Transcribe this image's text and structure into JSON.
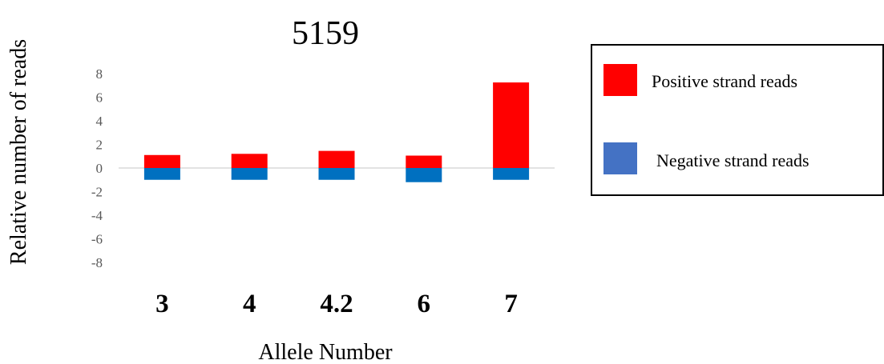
{
  "chart_data": {
    "type": "bar",
    "title": "5159",
    "xlabel": "Allele Number",
    "ylabel": "Relative number of reads",
    "categories": [
      "3",
      "4",
      "4.2",
      "6",
      "7"
    ],
    "yticks": [
      "8",
      "6",
      "4",
      "2",
      "0",
      "-2",
      "-4",
      "-6",
      "-8"
    ],
    "ylim": [
      -8,
      8
    ],
    "grid": false,
    "stacked": true,
    "legend_position": "right",
    "series": [
      {
        "name": "Positive strand reads",
        "values": [
          1.1,
          1.2,
          1.45,
          1.05,
          7.25
        ],
        "color": "#ff0000"
      },
      {
        "name": "Negative strand reads",
        "values": [
          -1.0,
          -1.0,
          -1.0,
          -1.2,
          -1.0
        ],
        "color": "#0070c0",
        "legend_color": "#4472c4"
      }
    ]
  }
}
